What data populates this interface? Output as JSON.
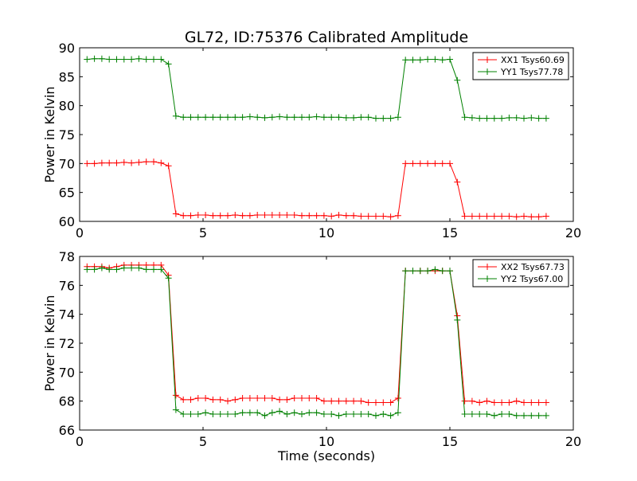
{
  "figure": {
    "title": "GL72, ID:75376 Calibrated Amplitude"
  },
  "chart_data": [
    {
      "type": "line",
      "title": "GL72, ID:75376 Calibrated Amplitude",
      "xlabel": "",
      "ylabel": "Power in Kelvin",
      "xlim": [
        0,
        20
      ],
      "ylim": [
        60,
        90
      ],
      "xticks": [
        0,
        5,
        10,
        15,
        20
      ],
      "yticks": [
        60,
        65,
        70,
        75,
        80,
        85,
        90
      ],
      "x": [
        0.3,
        0.6,
        0.9,
        1.2,
        1.5,
        1.8,
        2.1,
        2.4,
        2.7,
        3.0,
        3.3,
        3.6,
        3.9,
        4.2,
        4.5,
        4.8,
        5.1,
        5.4,
        5.7,
        6.0,
        6.3,
        6.6,
        6.9,
        7.2,
        7.5,
        7.8,
        8.1,
        8.4,
        8.7,
        9.0,
        9.3,
        9.6,
        9.9,
        10.2,
        10.5,
        10.8,
        11.1,
        11.4,
        11.7,
        12.0,
        12.3,
        12.6,
        12.9,
        13.2,
        13.5,
        13.8,
        14.1,
        14.4,
        14.7,
        15.0,
        15.3,
        15.6,
        15.9,
        16.2,
        16.5,
        16.8,
        17.1,
        17.4,
        17.7,
        18.0,
        18.3,
        18.6,
        18.9
      ],
      "series": [
        {
          "name": "XX1 Tsys60.69",
          "color": "#ff0000",
          "values": [
            70.0,
            70.0,
            70.1,
            70.1,
            70.1,
            70.2,
            70.1,
            70.2,
            70.3,
            70.3,
            70.1,
            69.6,
            61.3,
            61.0,
            61.0,
            61.1,
            61.1,
            61.0,
            61.0,
            61.0,
            61.1,
            61.0,
            61.0,
            61.1,
            61.1,
            61.1,
            61.1,
            61.1,
            61.1,
            61.0,
            61.0,
            61.0,
            61.0,
            60.9,
            61.1,
            61.0,
            61.0,
            60.9,
            60.9,
            60.9,
            60.9,
            60.8,
            61.0,
            70.0,
            70.0,
            70.0,
            70.0,
            70.0,
            70.0,
            70.0,
            66.8,
            60.9,
            60.9,
            60.9,
            60.9,
            60.9,
            60.9,
            60.9,
            60.8,
            60.9,
            60.8,
            60.8,
            60.9
          ]
        },
        {
          "name": "YY1 Tsys77.78",
          "color": "#008000",
          "values": [
            88.0,
            88.1,
            88.1,
            88.0,
            88.0,
            88.0,
            88.0,
            88.1,
            88.0,
            88.0,
            88.0,
            87.2,
            78.2,
            78.0,
            78.0,
            78.0,
            78.0,
            78.0,
            78.0,
            78.0,
            78.0,
            78.0,
            78.1,
            78.0,
            77.9,
            78.0,
            78.1,
            78.0,
            78.0,
            78.0,
            78.0,
            78.1,
            78.0,
            78.0,
            78.0,
            77.9,
            77.9,
            78.0,
            78.0,
            77.8,
            77.8,
            77.8,
            78.0,
            87.9,
            87.9,
            87.9,
            88.0,
            88.0,
            87.9,
            88.0,
            84.4,
            78.0,
            77.9,
            77.8,
            77.8,
            77.8,
            77.8,
            77.9,
            77.9,
            77.8,
            77.9,
            77.8,
            77.8
          ]
        }
      ],
      "legend": "top-right"
    },
    {
      "type": "line",
      "title": "",
      "xlabel": "Time (seconds)",
      "ylabel": "Power in Kelvin",
      "xlim": [
        0,
        20
      ],
      "ylim": [
        66,
        78
      ],
      "xticks": [
        0,
        5,
        10,
        15,
        20
      ],
      "yticks": [
        66,
        68,
        70,
        72,
        74,
        76,
        78
      ],
      "x": [
        0.3,
        0.6,
        0.9,
        1.2,
        1.5,
        1.8,
        2.1,
        2.4,
        2.7,
        3.0,
        3.3,
        3.6,
        3.9,
        4.2,
        4.5,
        4.8,
        5.1,
        5.4,
        5.7,
        6.0,
        6.3,
        6.6,
        6.9,
        7.2,
        7.5,
        7.8,
        8.1,
        8.4,
        8.7,
        9.0,
        9.3,
        9.6,
        9.9,
        10.2,
        10.5,
        10.8,
        11.1,
        11.4,
        11.7,
        12.0,
        12.3,
        12.6,
        12.9,
        13.2,
        13.5,
        13.8,
        14.1,
        14.4,
        14.7,
        15.0,
        15.3,
        15.6,
        15.9,
        16.2,
        16.5,
        16.8,
        17.1,
        17.4,
        17.7,
        18.0,
        18.3,
        18.6,
        18.9
      ],
      "series": [
        {
          "name": "XX2 Tsys67.73",
          "color": "#ff0000",
          "values": [
            77.3,
            77.3,
            77.3,
            77.2,
            77.3,
            77.4,
            77.4,
            77.4,
            77.4,
            77.4,
            77.4,
            76.7,
            68.4,
            68.1,
            68.1,
            68.2,
            68.2,
            68.1,
            68.1,
            68.0,
            68.1,
            68.2,
            68.2,
            68.2,
            68.2,
            68.2,
            68.1,
            68.1,
            68.2,
            68.2,
            68.2,
            68.2,
            68.0,
            68.0,
            68.0,
            68.0,
            68.0,
            68.0,
            67.9,
            67.9,
            67.9,
            67.9,
            68.2,
            77.0,
            77.0,
            77.0,
            77.0,
            77.0,
            77.0,
            77.0,
            73.9,
            68.0,
            68.0,
            67.9,
            68.0,
            67.9,
            67.9,
            67.9,
            68.0,
            67.9,
            67.9,
            67.9,
            67.9
          ]
        },
        {
          "name": "YY2 Tsys67.00",
          "color": "#008000",
          "values": [
            77.1,
            77.1,
            77.2,
            77.1,
            77.1,
            77.2,
            77.2,
            77.2,
            77.1,
            77.1,
            77.1,
            76.5,
            67.4,
            67.1,
            67.1,
            67.1,
            67.2,
            67.1,
            67.1,
            67.1,
            67.1,
            67.2,
            67.2,
            67.2,
            67.0,
            67.2,
            67.3,
            67.1,
            67.2,
            67.1,
            67.2,
            67.2,
            67.1,
            67.1,
            67.0,
            67.1,
            67.1,
            67.1,
            67.1,
            67.0,
            67.1,
            67.0,
            67.2,
            77.0,
            77.0,
            77.0,
            77.0,
            77.1,
            77.0,
            77.0,
            73.6,
            67.1,
            67.1,
            67.1,
            67.1,
            67.0,
            67.1,
            67.1,
            67.0,
            67.0,
            67.0,
            67.0,
            67.0
          ]
        }
      ],
      "legend": "top-right"
    }
  ]
}
